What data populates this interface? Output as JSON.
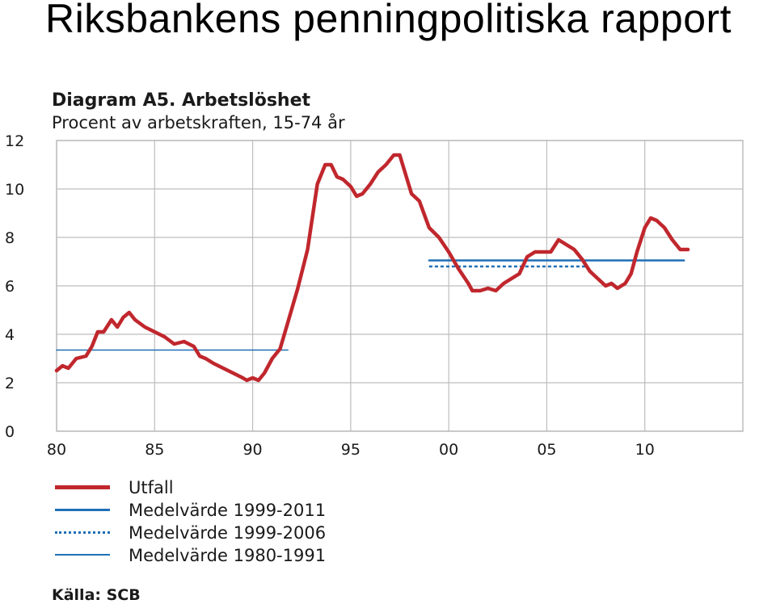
{
  "slide_title": "Riksbankens penningpolitiska rapport",
  "source": "Källa: SCB",
  "chart_data": {
    "type": "line",
    "title": "Diagram A5. Arbetslöshet",
    "subtitle": "Procent av arbetskraften, 15-74 år",
    "xlabel": "",
    "ylabel": "",
    "xlim": [
      1980,
      2015
    ],
    "ylim": [
      0,
      12
    ],
    "y_ticks": [
      0,
      2,
      4,
      6,
      8,
      10,
      12
    ],
    "x_ticks": [
      1980,
      1985,
      1990,
      1995,
      2000,
      2005,
      2010
    ],
    "x_tick_labels": [
      "80",
      "85",
      "90",
      "95",
      "00",
      "05",
      "10"
    ],
    "grid": true,
    "legend_position": "bottom",
    "series": [
      {
        "name": "Utfall",
        "color": "#c0272d",
        "style": "solid-thick",
        "x": [
          1980.0,
          1980.3,
          1980.6,
          1981.0,
          1981.5,
          1981.8,
          1982.1,
          1982.4,
          1982.8,
          1983.1,
          1983.4,
          1983.7,
          1984.0,
          1984.5,
          1985.0,
          1985.5,
          1986.0,
          1986.5,
          1987.0,
          1987.3,
          1987.6,
          1988.0,
          1988.5,
          1989.0,
          1989.5,
          1989.7,
          1990.0,
          1990.3,
          1990.6,
          1991.0,
          1991.4,
          1991.8,
          1992.3,
          1992.8,
          1993.3,
          1993.7,
          1994.0,
          1994.3,
          1994.6,
          1995.0,
          1995.3,
          1995.6,
          1996.0,
          1996.4,
          1996.8,
          1997.2,
          1997.5,
          1997.8,
          1998.1,
          1998.5,
          1999.0,
          1999.5,
          2000.0,
          2000.5,
          2001.0,
          2001.2,
          2001.6,
          2002.0,
          2002.4,
          2002.8,
          2003.2,
          2003.6,
          2004.0,
          2004.4,
          2004.8,
          2005.2,
          2005.6,
          2006.0,
          2006.4,
          2006.8,
          2007.2,
          2007.6,
          2008.0,
          2008.3,
          2008.6,
          2009.0,
          2009.3,
          2009.6,
          2010.0,
          2010.3,
          2010.6,
          2011.0,
          2011.4,
          2011.8,
          2012.2
        ],
        "values": [
          2.5,
          2.7,
          2.6,
          3.0,
          3.1,
          3.5,
          4.1,
          4.1,
          4.6,
          4.3,
          4.7,
          4.9,
          4.6,
          4.3,
          4.1,
          3.9,
          3.6,
          3.7,
          3.5,
          3.1,
          3.0,
          2.8,
          2.6,
          2.4,
          2.2,
          2.1,
          2.2,
          2.1,
          2.4,
          3.0,
          3.4,
          4.5,
          5.9,
          7.5,
          10.2,
          11.0,
          11.0,
          10.5,
          10.4,
          10.1,
          9.7,
          9.8,
          10.2,
          10.7,
          11.0,
          11.4,
          11.4,
          10.6,
          9.8,
          9.5,
          8.4,
          8.0,
          7.4,
          6.7,
          6.1,
          5.8,
          5.8,
          5.9,
          5.8,
          6.1,
          6.3,
          6.5,
          7.2,
          7.4,
          7.4,
          7.4,
          7.9,
          7.7,
          7.5,
          7.1,
          6.6,
          6.3,
          6.0,
          6.1,
          5.9,
          6.1,
          6.5,
          7.4,
          8.4,
          8.8,
          8.7,
          8.4,
          7.9,
          7.5,
          7.5
        ]
      },
      {
        "name": "Medelvärde 1999-2011",
        "color": "#1f6fb5",
        "style": "solid",
        "x": [
          1999.0,
          2012.0
        ],
        "values": [
          7.05,
          7.05
        ]
      },
      {
        "name": "Medelvärde 1999-2006",
        "color": "#1f6fb5",
        "style": "dotted",
        "x": [
          1999.0,
          2007.0
        ],
        "values": [
          6.8,
          6.8
        ]
      },
      {
        "name": "Medelvärde 1980-1991",
        "color": "#1f6fb5",
        "style": "solid-thin",
        "x": [
          1980.0,
          1991.8
        ],
        "values": [
          3.35,
          3.35
        ]
      }
    ]
  }
}
